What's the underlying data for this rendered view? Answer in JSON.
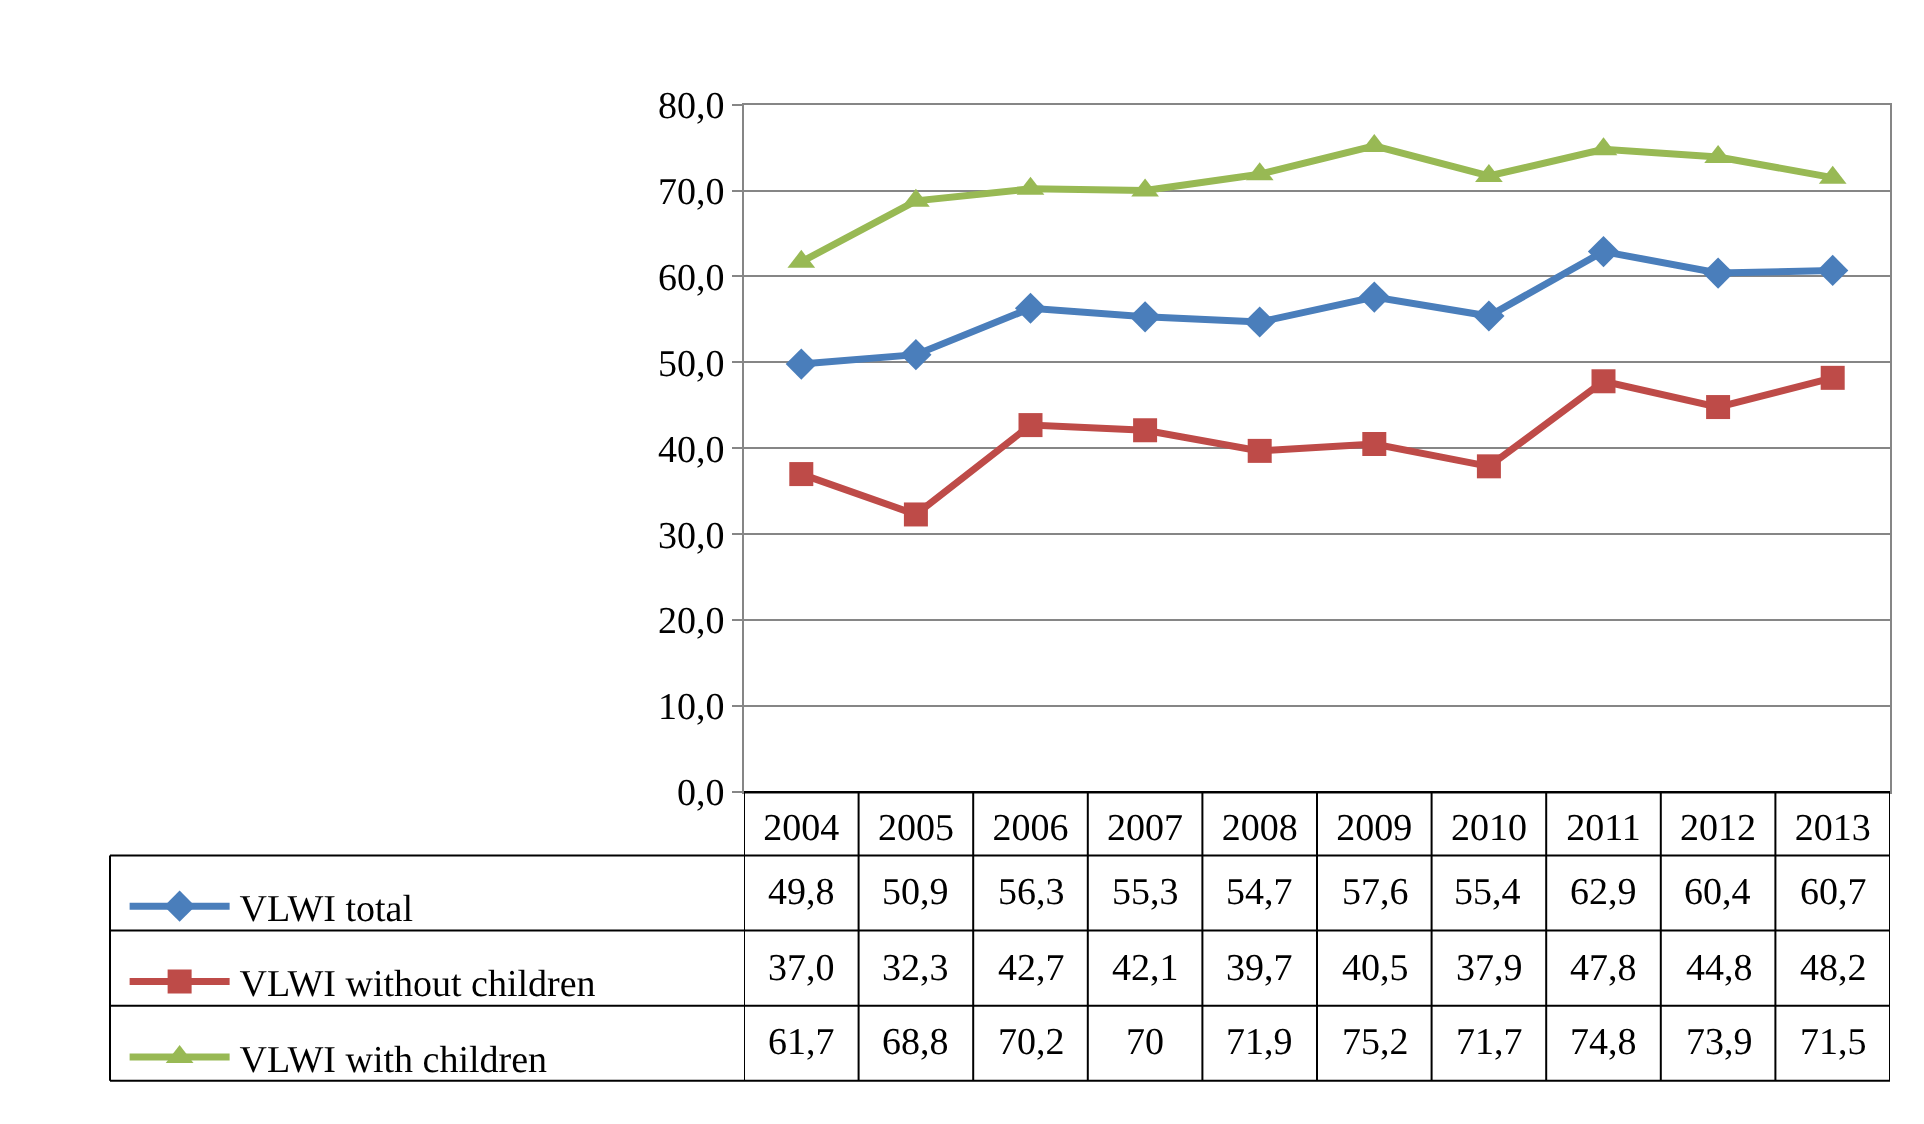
{
  "chart_data": {
    "type": "line",
    "categories": [
      "2004",
      "2005",
      "2006",
      "2007",
      "2008",
      "2009",
      "2010",
      "2011",
      "2012",
      "2013"
    ],
    "series": [
      {
        "name": "VLWI total",
        "color": "#4a7ebb",
        "marker": "diamond",
        "values": [
          49.8,
          50.9,
          56.3,
          55.3,
          54.7,
          57.6,
          55.4,
          62.9,
          60.4,
          60.7
        ],
        "value_labels": [
          "49,8",
          "50,9",
          "56,3",
          "55,3",
          "54,7",
          "57,6",
          "55,4",
          "62,9",
          "60,4",
          "60,7"
        ]
      },
      {
        "name": "VLWI without children",
        "color": "#be4b48",
        "marker": "square",
        "values": [
          37.0,
          32.3,
          42.7,
          42.1,
          39.7,
          40.5,
          37.9,
          47.8,
          44.8,
          48.2
        ],
        "value_labels": [
          "37,0",
          "32,3",
          "42,7",
          "42,1",
          "39,7",
          "40,5",
          "37,9",
          "47,8",
          "44,8",
          "48,2"
        ]
      },
      {
        "name": "VLWI with children",
        "color": "#98b954",
        "marker": "triangle",
        "values": [
          61.7,
          68.8,
          70.2,
          70,
          71.9,
          75.2,
          71.7,
          74.8,
          73.9,
          71.5
        ],
        "value_labels": [
          "61,7",
          "68,8",
          "70,2",
          "70",
          "71,9",
          "75,2",
          "71,7",
          "74,8",
          "73,9",
          "71,5"
        ]
      }
    ],
    "ylim": [
      0,
      80
    ],
    "yticks": [
      {
        "value": 0,
        "label": "0,0"
      },
      {
        "value": 10,
        "label": "10,0"
      },
      {
        "value": 20,
        "label": "20,0"
      },
      {
        "value": 30,
        "label": "30,0"
      },
      {
        "value": 40,
        "label": "40,0"
      },
      {
        "value": 50,
        "label": "50,0"
      },
      {
        "value": 60,
        "label": "60,0"
      },
      {
        "value": 70,
        "label": "70,0"
      },
      {
        "value": 80,
        "label": "80,0"
      }
    ],
    "grid": "y",
    "legend": "bottom left",
    "line_style": "solid"
  }
}
